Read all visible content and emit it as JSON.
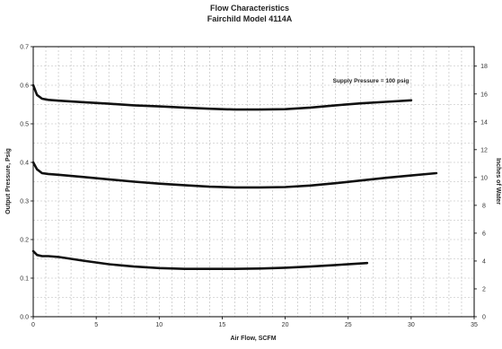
{
  "chart_data": {
    "type": "line",
    "title": "Flow Characteristics",
    "subtitle": "Fairchild Model 4114A",
    "xlabel": "Air Flow, SCFM",
    "ylabel": "Output Pressure, Psig",
    "y2label": "Inches of Water",
    "xlim": [
      0,
      35
    ],
    "ylim": [
      0,
      0.7
    ],
    "y2lim": [
      0,
      19.4
    ],
    "x_ticks": [
      "0",
      "5",
      "10",
      "15",
      "20",
      "25",
      "30",
      "35"
    ],
    "y_ticks": [
      "0.0",
      "0.1",
      "0.2",
      "0.3",
      "0.4",
      "0.5",
      "0.6",
      "0.7"
    ],
    "y2_ticks": [
      "0",
      "2",
      "4",
      "6",
      "8",
      "10",
      "12",
      "14",
      "16",
      "18"
    ],
    "grid": true,
    "annotation": "Supply Pressure = 100 psig",
    "series": [
      {
        "x": [
          0,
          0.3,
          0.7,
          1.2,
          2,
          4,
          6,
          8,
          10,
          12,
          14,
          16,
          18,
          20,
          22,
          24,
          26,
          28,
          30
        ],
        "values": [
          0.6,
          0.575,
          0.565,
          0.562,
          0.56,
          0.556,
          0.552,
          0.548,
          0.545,
          0.542,
          0.539,
          0.537,
          0.537,
          0.538,
          0.542,
          0.548,
          0.553,
          0.557,
          0.561
        ]
      },
      {
        "x": [
          0,
          0.3,
          0.7,
          1.2,
          2,
          4,
          6,
          8,
          10,
          12,
          14,
          16,
          18,
          20,
          22,
          24,
          26,
          28,
          30,
          32
        ],
        "values": [
          0.4,
          0.382,
          0.372,
          0.37,
          0.368,
          0.362,
          0.356,
          0.35,
          0.345,
          0.341,
          0.337,
          0.335,
          0.335,
          0.336,
          0.34,
          0.346,
          0.353,
          0.36,
          0.366,
          0.372
        ]
      },
      {
        "x": [
          0,
          0.3,
          0.7,
          1.2,
          2,
          4,
          6,
          8,
          10,
          12,
          14,
          16,
          18,
          20,
          22,
          24,
          26.5
        ],
        "values": [
          0.17,
          0.16,
          0.157,
          0.157,
          0.155,
          0.145,
          0.136,
          0.13,
          0.126,
          0.124,
          0.124,
          0.124,
          0.125,
          0.127,
          0.13,
          0.134,
          0.139
        ]
      }
    ]
  }
}
